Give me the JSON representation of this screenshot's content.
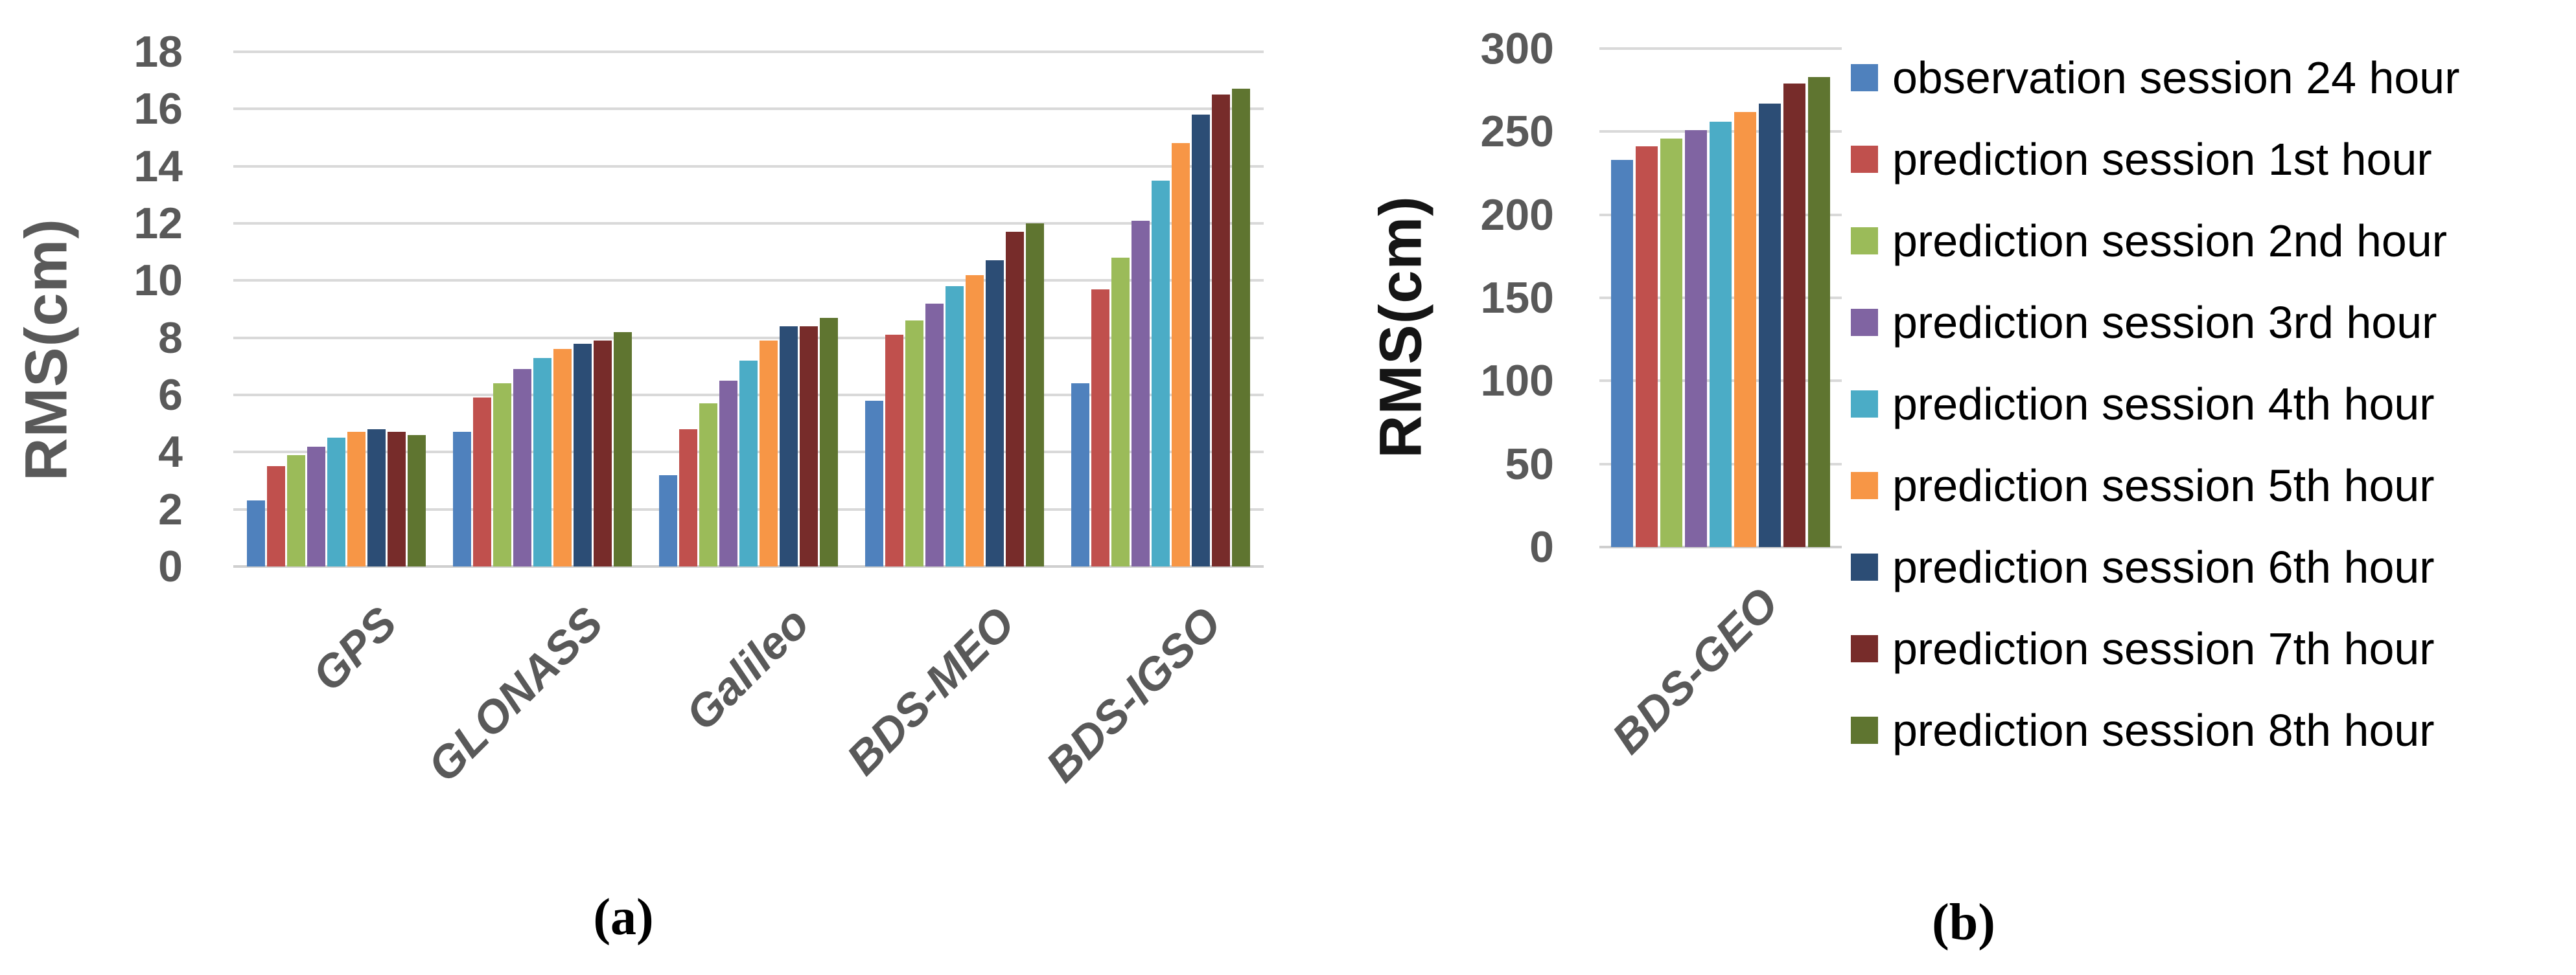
{
  "figure": {
    "background": "#FFFFFF",
    "gridline_color": "#D9D9D9",
    "tick_color": "#595959"
  },
  "captions": {
    "a": "(a)",
    "b": "(b)"
  },
  "chart_data": [
    {
      "id": "a",
      "type": "bar",
      "title": "",
      "ylabel": "RMS(cm)",
      "ylabel_color": "#595959",
      "xlabel": "",
      "ylim": [
        0,
        18
      ],
      "ytick_step": 2,
      "yticks": [
        18,
        16,
        14,
        12,
        10,
        8,
        6,
        4,
        2,
        0
      ],
      "grid": true,
      "legend_position": "none",
      "categories": [
        "GPS",
        "GLONASS",
        "Galileo",
        "BDS-MEO",
        "BDS-IGSO"
      ],
      "series": [
        {
          "name": "observation session 24 hour",
          "color": "#4F81BD",
          "values": [
            2.3,
            4.7,
            3.2,
            5.8,
            6.4
          ]
        },
        {
          "name": "prediction session 1st hour",
          "color": "#C0504D",
          "values": [
            3.5,
            5.9,
            4.8,
            8.1,
            9.7
          ]
        },
        {
          "name": "prediction session 2nd hour",
          "color": "#9BBB59",
          "values": [
            3.9,
            6.4,
            5.7,
            8.6,
            10.8
          ]
        },
        {
          "name": "prediction session 3rd hour",
          "color": "#8064A2",
          "values": [
            4.2,
            6.9,
            6.5,
            9.2,
            12.1
          ]
        },
        {
          "name": "prediction session 4th hour",
          "color": "#4BACC6",
          "values": [
            4.5,
            7.3,
            7.2,
            9.8,
            13.5
          ]
        },
        {
          "name": "prediction session 5th hour",
          "color": "#F79646",
          "values": [
            4.7,
            7.6,
            7.9,
            10.2,
            14.8
          ]
        },
        {
          "name": "prediction session 6th hour",
          "color": "#2C4D75",
          "values": [
            4.8,
            7.8,
            8.4,
            10.7,
            15.8
          ]
        },
        {
          "name": "prediction session 7th hour",
          "color": "#772C2A",
          "values": [
            4.7,
            7.9,
            8.4,
            11.7,
            16.5
          ]
        },
        {
          "name": "prediction session 8th hour",
          "color": "#5F7530",
          "values": [
            4.6,
            8.2,
            8.7,
            12.0,
            16.7
          ]
        }
      ]
    },
    {
      "id": "b",
      "type": "bar",
      "title": "",
      "ylabel": "RMS(cm)",
      "ylabel_color": "#151515",
      "xlabel": "",
      "ylim": [
        0,
        300
      ],
      "ytick_step": 50,
      "yticks": [
        300,
        250,
        200,
        150,
        100,
        50,
        0
      ],
      "grid": true,
      "legend_position": "right",
      "categories": [
        "BDS-GEO"
      ],
      "series": [
        {
          "name": "observation session 24 hour",
          "color": "#4F81BD",
          "values": [
            233
          ]
        },
        {
          "name": "prediction session 1st hour",
          "color": "#C0504D",
          "values": [
            241
          ]
        },
        {
          "name": "prediction session 2nd hour",
          "color": "#9BBB59",
          "values": [
            246
          ]
        },
        {
          "name": "prediction session 3rd hour",
          "color": "#8064A2",
          "values": [
            251
          ]
        },
        {
          "name": "prediction session 4th hour",
          "color": "#4BACC6",
          "values": [
            256
          ]
        },
        {
          "name": "prediction session 5th hour",
          "color": "#F79646",
          "values": [
            262
          ]
        },
        {
          "name": "prediction session 6th hour",
          "color": "#2C4D75",
          "values": [
            267
          ]
        },
        {
          "name": "prediction session 7th hour",
          "color": "#772C2A",
          "values": [
            279
          ]
        },
        {
          "name": "prediction session 8th hour",
          "color": "#5F7530",
          "values": [
            283
          ]
        }
      ]
    }
  ]
}
